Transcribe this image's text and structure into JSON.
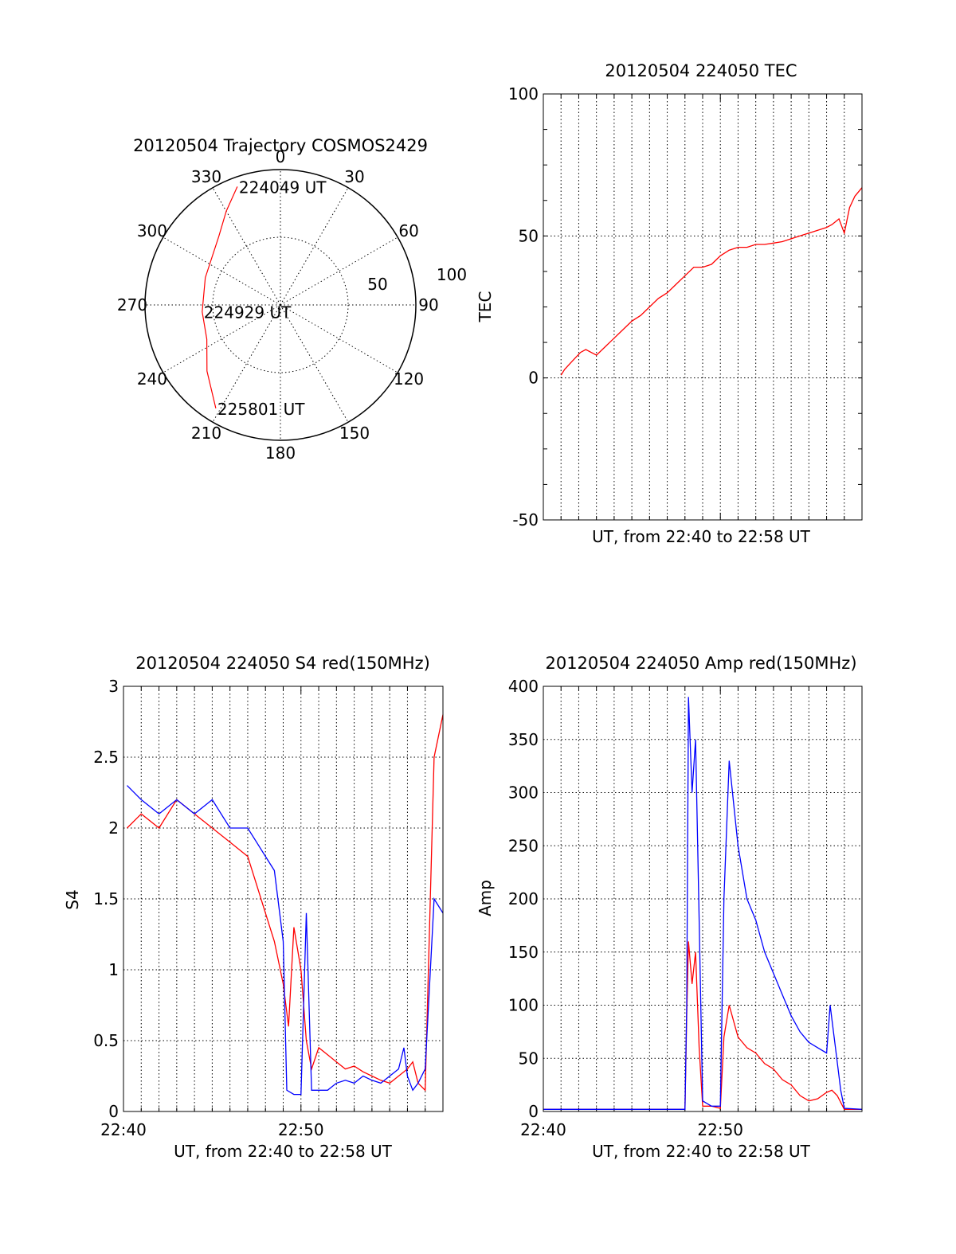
{
  "chart_data": [
    {
      "type": "polar",
      "title": "20120504 Trajectory COSMOS2429",
      "azimuth_labels": [
        "0",
        "30",
        "60",
        "90",
        "120",
        "150",
        "180",
        "210",
        "240",
        "270",
        "300",
        "330"
      ],
      "radial_labels": [
        "50",
        "100"
      ],
      "rlim": [
        0,
        100
      ],
      "grid": true,
      "series": [
        {
          "color": "#ff0000",
          "points": [
            {
              "az": 340,
              "el": 7,
              "label": "224049 UT"
            },
            {
              "az": 330,
              "el": 20
            },
            {
              "az": 318,
              "el": 32
            },
            {
              "az": 290,
              "el": 41
            },
            {
              "az": 265,
              "el": 42,
              "label": "224929 UT"
            },
            {
              "az": 245,
              "el": 40
            },
            {
              "az": 228,
              "el": 27
            },
            {
              "az": 212,
              "el": 10,
              "label": "225801 UT"
            }
          ]
        }
      ]
    },
    {
      "type": "line",
      "title": "20120504 224050 TEC",
      "xlabel": "UT, from 22:40 to 22:58 UT",
      "ylabel": "TEC",
      "xlim": [
        0,
        18
      ],
      "ylim": [
        -50,
        100
      ],
      "yticks": [
        -50,
        0,
        50,
        100
      ],
      "grid": true,
      "series": [
        {
          "color": "#ff0000",
          "x": [
            1.0,
            1.2,
            1.5,
            1.8,
            2.1,
            2.4,
            2.7,
            3.0,
            3.5,
            4.0,
            4.5,
            5.0,
            5.5,
            6.0,
            6.5,
            7.0,
            7.5,
            8.0,
            8.5,
            9.0,
            9.5,
            10.0,
            10.5,
            11.0,
            11.5,
            12.0,
            12.5,
            13.0,
            13.5,
            14.0,
            14.5,
            15.0,
            15.5,
            16.0,
            16.3,
            16.5,
            16.7,
            17.0,
            17.3,
            17.6,
            18.0
          ],
          "y": [
            1,
            3,
            5,
            7,
            9,
            10,
            9,
            8,
            11,
            14,
            17,
            20,
            22,
            25,
            28,
            30,
            33,
            36,
            39,
            39,
            40,
            43,
            45,
            46,
            46,
            47,
            47,
            47.5,
            48,
            49,
            50,
            51,
            52,
            53,
            54,
            55,
            56,
            51,
            60,
            64,
            67
          ]
        }
      ]
    },
    {
      "type": "line",
      "title": "20120504 224050 S4 red(150MHz)",
      "xlabel": "UT, from 22:40 to 22:58 UT",
      "ylabel": "S4",
      "xlim": [
        0,
        18
      ],
      "ylim": [
        0,
        3
      ],
      "xticks": [
        "22:40",
        "22:50"
      ],
      "yticks": [
        "0",
        "0.5",
        "1",
        "1.5",
        "2",
        "2.5",
        "3"
      ],
      "grid": true,
      "series": [
        {
          "color": "#ff0000",
          "x": [
            0.2,
            1.0,
            2.0,
            3.0,
            4.0,
            5.0,
            6.0,
            7.0,
            7.5,
            8.0,
            8.5,
            9.0,
            9.3,
            9.6,
            10.0,
            10.3,
            10.6,
            11.0,
            11.5,
            12.0,
            12.5,
            13.0,
            13.5,
            14.0,
            14.5,
            15.0,
            15.5,
            16.0,
            16.3,
            16.6,
            17.0,
            17.5,
            18.0
          ],
          "y": [
            2.0,
            2.1,
            2.0,
            2.2,
            2.1,
            2.0,
            1.9,
            1.8,
            1.6,
            1.4,
            1.2,
            0.9,
            0.6,
            1.3,
            1.0,
            0.5,
            0.3,
            0.45,
            0.4,
            0.35,
            0.3,
            0.32,
            0.28,
            0.25,
            0.22,
            0.2,
            0.25,
            0.3,
            0.35,
            0.2,
            0.15,
            2.5,
            2.8
          ]
        },
        {
          "color": "#0000ff",
          "x": [
            0.2,
            1.0,
            2.0,
            3.0,
            4.0,
            5.0,
            6.0,
            7.0,
            7.5,
            8.0,
            8.5,
            9.0,
            9.2,
            9.6,
            10.0,
            10.3,
            10.6,
            11.0,
            11.5,
            12.0,
            12.5,
            13.0,
            13.5,
            14.0,
            14.5,
            15.0,
            15.5,
            15.8,
            16.0,
            16.3,
            16.6,
            17.0,
            17.5,
            18.0
          ],
          "y": [
            2.3,
            2.2,
            2.1,
            2.2,
            2.1,
            2.2,
            2.0,
            2.0,
            1.9,
            1.8,
            1.7,
            1.2,
            0.15,
            0.12,
            0.12,
            1.4,
            0.15,
            0.15,
            0.15,
            0.2,
            0.22,
            0.2,
            0.25,
            0.22,
            0.2,
            0.25,
            0.3,
            0.45,
            0.25,
            0.15,
            0.2,
            0.3,
            1.5,
            1.4
          ]
        }
      ]
    },
    {
      "type": "line",
      "title": "20120504 224050 Amp red(150MHz)",
      "xlabel": "UT, from 22:40 to 22:58 UT",
      "ylabel": "Amp",
      "xlim": [
        0,
        18
      ],
      "ylim": [
        0,
        400
      ],
      "xticks": [
        "22:40",
        "22:50"
      ],
      "yticks": [
        "0",
        "50",
        "100",
        "150",
        "200",
        "250",
        "300",
        "350",
        "400"
      ],
      "grid": true,
      "series": [
        {
          "color": "#ff0000",
          "x": [
            0,
            2,
            4,
            6,
            8,
            8.1,
            8.2,
            8.4,
            8.6,
            8.8,
            9.0,
            9.5,
            10.0,
            10.2,
            10.5,
            11.0,
            11.5,
            12.0,
            12.5,
            13.0,
            13.5,
            14.0,
            14.5,
            15.0,
            15.5,
            16.0,
            16.3,
            16.6,
            17.0,
            18.0
          ],
          "y": [
            2,
            2,
            2,
            2,
            2,
            90,
            160,
            120,
            150,
            60,
            5,
            5,
            3,
            70,
            100,
            70,
            60,
            55,
            45,
            40,
            30,
            25,
            15,
            10,
            12,
            18,
            20,
            15,
            2,
            2
          ]
        },
        {
          "color": "#0000ff",
          "x": [
            0,
            2,
            4,
            6,
            8,
            8.1,
            8.2,
            8.4,
            8.6,
            8.8,
            9.0,
            9.5,
            10.0,
            10.2,
            10.5,
            11.0,
            11.5,
            12.0,
            12.5,
            13.0,
            13.5,
            14.0,
            14.5,
            15.0,
            15.5,
            16.0,
            16.2,
            16.5,
            16.8,
            17.0,
            18.0
          ],
          "y": [
            2,
            2,
            2,
            2,
            2,
            100,
            390,
            300,
            350,
            180,
            10,
            5,
            5,
            200,
            330,
            250,
            200,
            180,
            150,
            130,
            110,
            90,
            75,
            65,
            60,
            55,
            100,
            60,
            20,
            3,
            2
          ]
        }
      ]
    }
  ]
}
